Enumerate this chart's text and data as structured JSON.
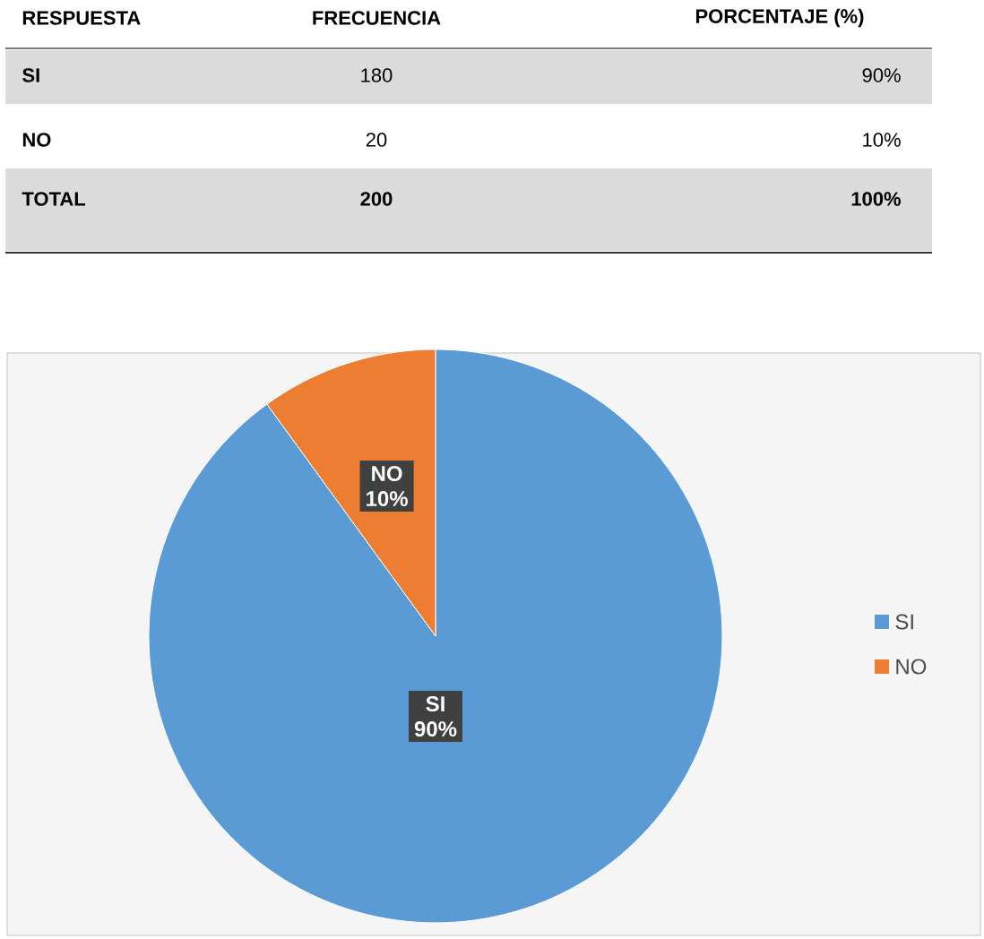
{
  "chart_data": {
    "type": "pie",
    "categories": [
      "SI",
      "NO"
    ],
    "values": [
      90,
      10
    ],
    "value_labels": [
      "90%",
      "10%"
    ],
    "colors": [
      "#5b9bd5",
      "#ed7d31"
    ],
    "legend": "right",
    "annotations": [
      "RESPUESTA",
      "FRECUENCIA",
      "PORCENTAJE (%)",
      "SI",
      "180",
      "90%",
      "NO",
      "20",
      "10%",
      "TOTAL",
      "200",
      "100%"
    ]
  }
}
